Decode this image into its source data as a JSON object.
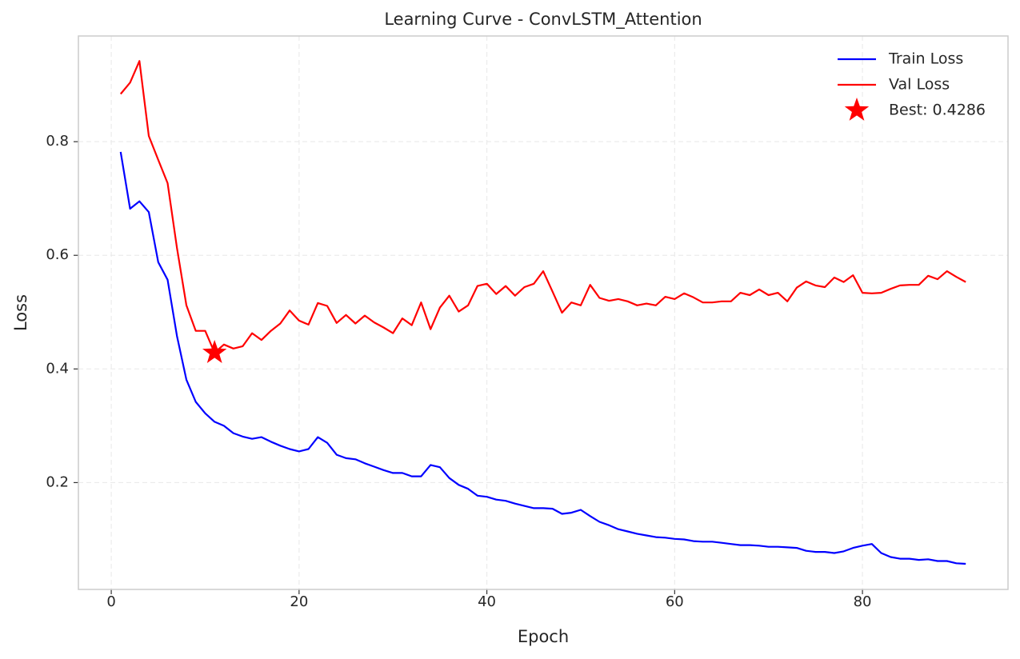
{
  "chart_data": {
    "type": "line",
    "title": "Learning Curve - ConvLSTM_Attention",
    "x_label": "Epoch",
    "y_label": "Loss",
    "x": [
      1,
      2,
      3,
      4,
      5,
      6,
      7,
      8,
      9,
      10,
      11,
      12,
      13,
      14,
      15,
      16,
      17,
      18,
      19,
      20,
      21,
      22,
      23,
      24,
      25,
      26,
      27,
      28,
      29,
      30,
      31,
      32,
      33,
      34,
      35,
      36,
      37,
      38,
      39,
      40,
      41,
      42,
      43,
      44,
      45,
      46,
      47,
      48,
      49,
      50,
      51,
      52,
      53,
      54,
      55,
      56,
      57,
      58,
      59,
      60,
      61,
      62,
      63,
      64,
      65,
      66,
      67,
      68,
      69,
      70,
      71,
      72,
      73,
      74,
      75,
      76,
      77,
      78,
      79,
      80,
      81,
      82,
      83,
      84,
      85,
      86,
      87,
      88,
      89,
      90,
      91
    ],
    "series": [
      {
        "name": "Train Loss",
        "color": "#0000ff",
        "values": [
          0.782,
          0.682,
          0.695,
          0.676,
          0.588,
          0.557,
          0.458,
          0.381,
          0.342,
          0.322,
          0.307,
          0.3,
          0.287,
          0.281,
          0.277,
          0.28,
          0.272,
          0.265,
          0.259,
          0.255,
          0.259,
          0.28,
          0.27,
          0.249,
          0.243,
          0.241,
          0.234,
          0.228,
          0.222,
          0.217,
          0.217,
          0.211,
          0.211,
          0.231,
          0.227,
          0.208,
          0.196,
          0.189,
          0.177,
          0.175,
          0.17,
          0.168,
          0.163,
          0.159,
          0.155,
          0.155,
          0.154,
          0.145,
          0.147,
          0.152,
          0.141,
          0.131,
          0.125,
          0.118,
          0.114,
          0.11,
          0.107,
          0.104,
          0.103,
          0.101,
          0.1,
          0.097,
          0.096,
          0.096,
          0.094,
          0.092,
          0.09,
          0.09,
          0.089,
          0.087,
          0.087,
          0.086,
          0.085,
          0.08,
          0.078,
          0.078,
          0.076,
          0.079,
          0.085,
          0.089,
          0.092,
          0.076,
          0.069,
          0.066,
          0.066,
          0.064,
          0.065,
          0.062,
          0.062,
          0.058,
          0.057
        ]
      },
      {
        "name": "Val Loss",
        "color": "#ff0000",
        "values": [
          0.884,
          0.904,
          0.942,
          0.81,
          0.768,
          0.727,
          0.613,
          0.512,
          0.467,
          0.467,
          0.4286,
          0.443,
          0.436,
          0.44,
          0.463,
          0.451,
          0.467,
          0.48,
          0.503,
          0.485,
          0.478,
          0.516,
          0.511,
          0.481,
          0.495,
          0.48,
          0.494,
          0.482,
          0.473,
          0.463,
          0.489,
          0.477,
          0.517,
          0.47,
          0.508,
          0.529,
          0.501,
          0.512,
          0.546,
          0.55,
          0.532,
          0.546,
          0.529,
          0.544,
          0.55,
          0.572,
          0.536,
          0.499,
          0.517,
          0.512,
          0.548,
          0.525,
          0.52,
          0.523,
          0.519,
          0.512,
          0.515,
          0.512,
          0.527,
          0.523,
          0.533,
          0.526,
          0.517,
          0.517,
          0.519,
          0.519,
          0.534,
          0.53,
          0.54,
          0.53,
          0.534,
          0.519,
          0.543,
          0.554,
          0.547,
          0.544,
          0.561,
          0.553,
          0.565,
          0.534,
          0.533,
          0.534,
          0.541,
          0.547,
          0.548,
          0.548,
          0.564,
          0.558,
          0.572,
          0.562,
          0.553
        ]
      },
      {
        "name": "Best: 0.4286",
        "color": "#ff0000",
        "marker": "star",
        "x": [
          11
        ],
        "values": [
          0.4286
        ]
      }
    ],
    "xlim": [
      -3.5,
      95.5
    ],
    "ylim": [
      0.012,
      0.986
    ],
    "xticks": [
      0,
      20,
      40,
      60,
      80
    ],
    "yticks": [
      0.2,
      0.4,
      0.6,
      0.8
    ],
    "grid": true,
    "legend": "upper right"
  }
}
